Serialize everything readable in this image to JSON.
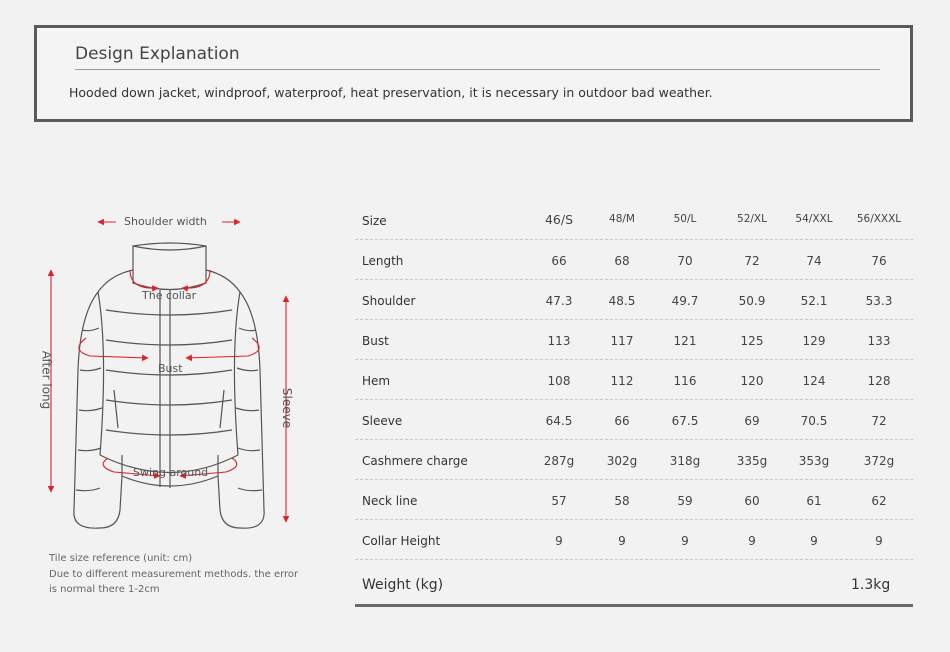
{
  "design": {
    "title": "Design Explanation",
    "text": "Hooded down jacket, windproof, waterproof, heat preservation, it is necessary in outdoor bad weather."
  },
  "diagram": {
    "shoulder_width": "Shoulder width",
    "collar": "The collar",
    "bust": "Bust",
    "swing": "Swing around",
    "after_long": "After long",
    "sleeve": "Sleeve",
    "arrow_color": "#d9262b"
  },
  "note": {
    "line1": "Tile size reference (unit: cm)",
    "line2": "Due to different measurement methods. the error",
    "line3": "is normal there 1-2cm"
  },
  "table": {
    "header": {
      "label": "Size",
      "sizes": [
        "46/S",
        "48/M",
        "50/L",
        "52/XL",
        "54/XXL",
        "56/XXXL"
      ]
    },
    "rows": [
      {
        "label": "Length",
        "values": [
          "66",
          "68",
          "70",
          "72",
          "74",
          "76"
        ]
      },
      {
        "label": "Shoulder",
        "values": [
          "47.3",
          "48.5",
          "49.7",
          "50.9",
          "52.1",
          "53.3"
        ]
      },
      {
        "label": "Bust",
        "values": [
          "113",
          "117",
          "121",
          "125",
          "129",
          "133"
        ]
      },
      {
        "label": "Hem",
        "values": [
          "108",
          "112",
          "116",
          "120",
          "124",
          "128"
        ]
      },
      {
        "label": "Sleeve",
        "values": [
          "64.5",
          "66",
          "67.5",
          "69",
          "70.5",
          "72"
        ]
      },
      {
        "label": "Cashmere charge",
        "values": [
          "287g",
          "302g",
          "318g",
          "335g",
          "353g",
          "372g"
        ]
      },
      {
        "label": "Neck line",
        "values": [
          "57",
          "58",
          "59",
          "60",
          "61",
          "62"
        ]
      },
      {
        "label": "Collar Height",
        "values": [
          "9",
          "9",
          "9",
          "9",
          "9",
          "9"
        ]
      }
    ],
    "weight": {
      "label": "Weight (kg)",
      "value": "1.3kg"
    }
  }
}
